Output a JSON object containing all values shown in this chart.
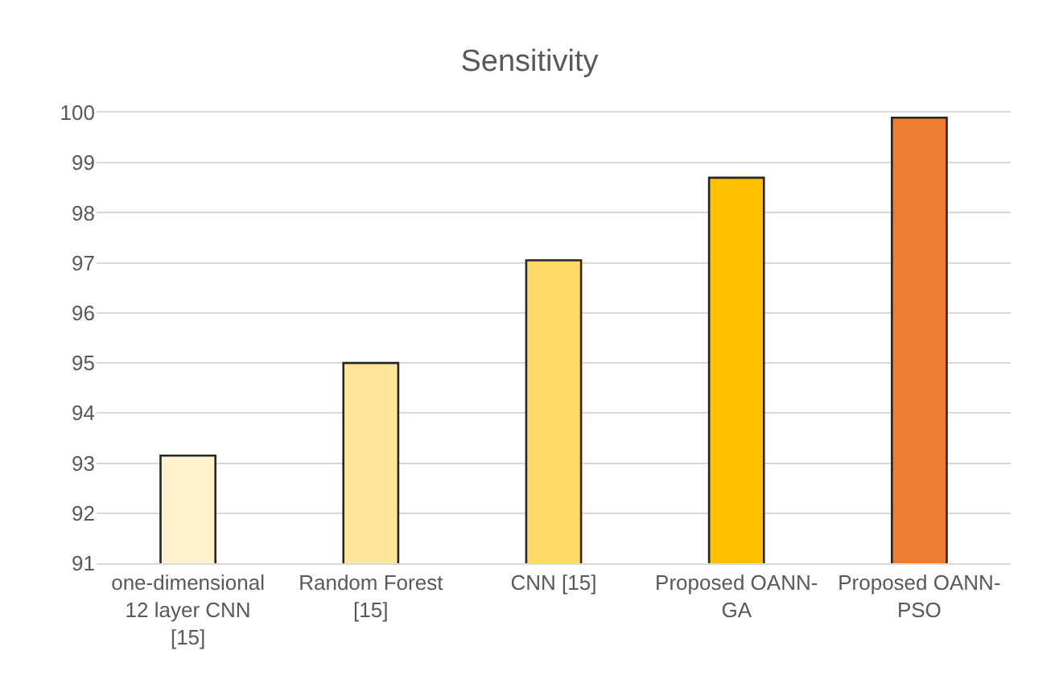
{
  "chart_data": {
    "type": "bar",
    "title": "Sensitivity",
    "categories": [
      "one-dimensional 12 layer CNN [15]",
      "Random Forest [15]",
      "CNN [15]",
      "Proposed OANN-GA",
      "Proposed OANN-PSO"
    ],
    "values": [
      93.15,
      95.0,
      97.05,
      98.7,
      99.9
    ],
    "colors": [
      "#fff2cc",
      "#ffe699",
      "#ffd966",
      "#ffc000",
      "#ed7d31"
    ],
    "ylim": [
      91,
      100
    ],
    "yticks": [
      91,
      92,
      93,
      94,
      95,
      96,
      97,
      98,
      99,
      100
    ],
    "grid": "y"
  }
}
